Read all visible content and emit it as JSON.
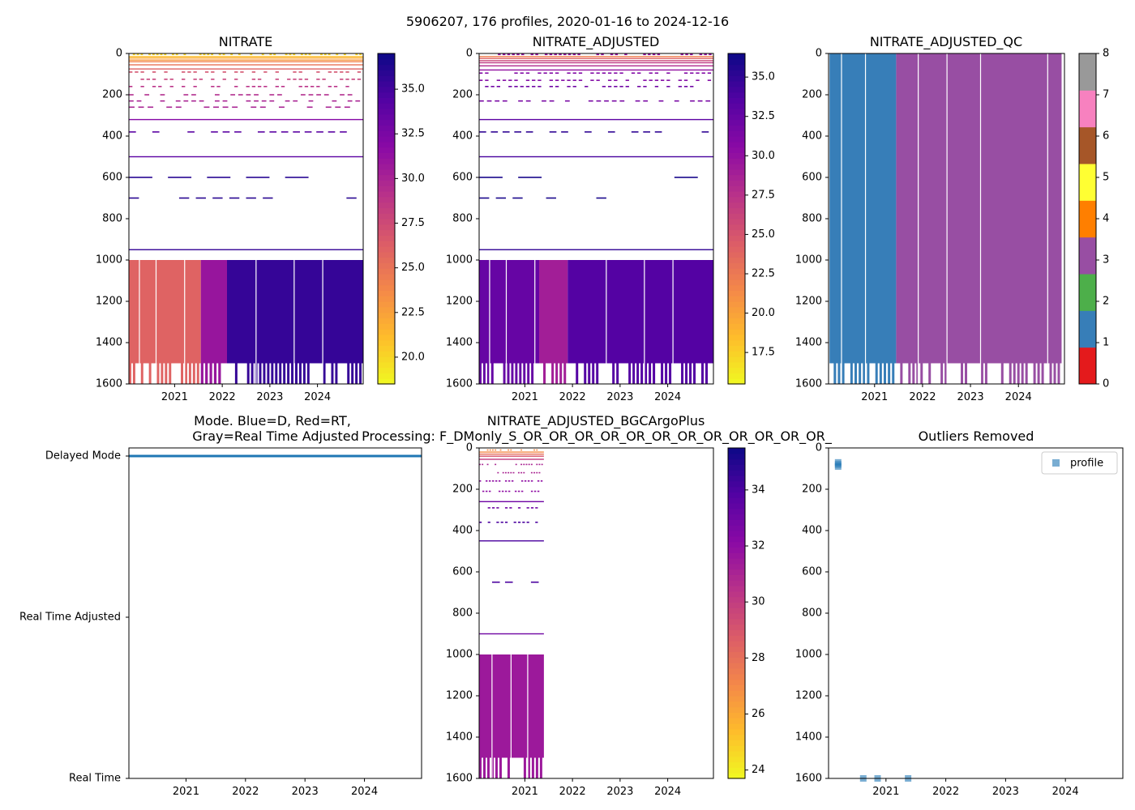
{
  "figure": {
    "title": "5906207, 176 profiles, 2020-01-16 to 2024-12-16"
  },
  "panels": {
    "nitrate": {
      "title": "NITRATE"
    },
    "nitrate_adjusted": {
      "title": "NITRATE_ADJUSTED"
    },
    "qc": {
      "title": "NITRATE_ADJUSTED_QC"
    },
    "mode": {
      "title_line1": "Mode. Blue=D, Red=RT,",
      "title_line2": "Gray=Real Time Adjusted"
    },
    "bgc": {
      "title_line1": "NITRATE_ADJUSTED_BGCArgoPlus",
      "title_line2": "Processing: F_DMonly_S_OR_OR_OR_OR_OR_OR_OR_OR_OR_OR_OR_OR_"
    },
    "outliers": {
      "title": "Outliers Removed"
    }
  },
  "chart_data": [
    {
      "id": "nitrate",
      "type": "heatmap",
      "title": "NITRATE",
      "x_ticks": [
        "2021",
        "2022",
        "2023",
        "2024"
      ],
      "xlim": [
        2020.04,
        2024.96
      ],
      "ylim": [
        1600,
        0
      ],
      "y_ticks": [
        0,
        200,
        400,
        600,
        800,
        1000,
        1200,
        1400,
        1600
      ],
      "colormap": "plasma_r",
      "clim": [
        18.5,
        37.0
      ],
      "colorbar_ticks": [
        20.0,
        22.5,
        25.0,
        27.5,
        30.0,
        32.5,
        35.0
      ],
      "colorbar_labels": [
        "20.0",
        "22.5",
        "25.0",
        "27.5",
        "30.0",
        "32.5",
        "35.0"
      ],
      "shallow_value": 19.5,
      "deep_segments": [
        {
          "x0": 2020.04,
          "x1": 2021.55,
          "value": 26.0
        },
        {
          "x0": 2021.55,
          "x1": 2022.1,
          "value": 31.0
        },
        {
          "x0": 2022.1,
          "x1": 2024.96,
          "value": 35.5
        }
      ]
    },
    {
      "id": "nitrate_adjusted",
      "type": "heatmap",
      "title": "NITRATE_ADJUSTED",
      "x_ticks": [
        "2021",
        "2022",
        "2023",
        "2024"
      ],
      "xlim": [
        2020.04,
        2024.96
      ],
      "ylim": [
        1600,
        0
      ],
      "y_ticks": [
        0,
        200,
        400,
        600,
        800,
        1000,
        1200,
        1400,
        1600
      ],
      "colormap": "plasma_r",
      "clim": [
        15.5,
        36.5
      ],
      "colorbar_ticks": [
        17.5,
        20.0,
        22.5,
        25.0,
        27.5,
        30.0,
        32.5,
        35.0
      ],
      "colorbar_labels": [
        "17.5",
        "20.0",
        "22.5",
        "25.0",
        "27.5",
        "30.0",
        "32.5",
        "35.0"
      ],
      "shallow_value": 17.0,
      "deep_segments": [
        {
          "x0": 2020.04,
          "x1": 2021.3,
          "value": 32.5
        },
        {
          "x0": 2021.3,
          "x1": 2021.9,
          "value": 29.0
        },
        {
          "x0": 2021.9,
          "x1": 2024.96,
          "value": 33.5
        }
      ]
    },
    {
      "id": "qc",
      "type": "heatmap",
      "title": "NITRATE_ADJUSTED_QC",
      "x_ticks": [
        "2021",
        "2022",
        "2023",
        "2024"
      ],
      "xlim": [
        2020.04,
        2024.96
      ],
      "ylim": [
        1600,
        0
      ],
      "y_ticks": [
        0,
        200,
        400,
        600,
        800,
        1000,
        1200,
        1400,
        1600
      ],
      "segments": [
        {
          "x0": 2020.06,
          "x1": 2021.45,
          "qc": 1
        },
        {
          "x0": 2021.45,
          "x1": 2024.9,
          "qc": 3
        }
      ],
      "colorbar_ticks": [
        "0",
        "1",
        "2",
        "3",
        "4",
        "5",
        "6",
        "7",
        "8"
      ],
      "qc_colors": [
        "#e41a1c",
        "#377eb8",
        "#4daf4a",
        "#984ea3",
        "#ff7f00",
        "#ffff33",
        "#a65628",
        "#f781bf",
        "#999999"
      ]
    },
    {
      "id": "mode",
      "type": "scatter",
      "x_ticks": [
        "2021",
        "2022",
        "2023",
        "2024"
      ],
      "xlim": [
        2020.04,
        2024.96
      ],
      "y_categories": [
        "Delayed Mode",
        "Real Time Adjusted",
        "Real Time"
      ],
      "series": [
        {
          "name": "D",
          "color": "#1f77b4",
          "x_range": [
            2020.04,
            2024.96
          ],
          "y": "Delayed Mode"
        }
      ]
    },
    {
      "id": "bgc",
      "type": "heatmap",
      "x_ticks": [
        "2021",
        "2022",
        "2023",
        "2024"
      ],
      "xlim": [
        2020.04,
        2024.96
      ],
      "ylim": [
        1600,
        0
      ],
      "y_ticks": [
        0,
        200,
        400,
        600,
        800,
        1000,
        1200,
        1400,
        1600
      ],
      "data_xrange": [
        2020.04,
        2021.4
      ],
      "colormap": "plasma_r",
      "clim": [
        23.7,
        35.5
      ],
      "colorbar_ticks": [
        24,
        26,
        28,
        30,
        32,
        34
      ],
      "colorbar_labels": [
        "24",
        "26",
        "28",
        "30",
        "32",
        "34"
      ],
      "deep_value": 31.5
    },
    {
      "id": "outliers",
      "type": "scatter",
      "x_ticks": [
        "2021",
        "2022",
        "2023",
        "2024"
      ],
      "xlim": [
        2020.04,
        2024.96
      ],
      "ylim": [
        1600,
        0
      ],
      "y_ticks": [
        0,
        200,
        400,
        600,
        800,
        1000,
        1200,
        1400,
        1600
      ],
      "legend": "profile",
      "series": [
        {
          "name": "profile",
          "color": "#1f77b4",
          "points": [
            {
              "x": 2020.2,
              "y": 70
            },
            {
              "x": 2020.2,
              "y": 80
            },
            {
              "x": 2020.2,
              "y": 90
            },
            {
              "x": 2020.62,
              "y": 1600
            },
            {
              "x": 2020.86,
              "y": 1600
            },
            {
              "x": 2021.37,
              "y": 1600
            }
          ]
        }
      ]
    }
  ]
}
